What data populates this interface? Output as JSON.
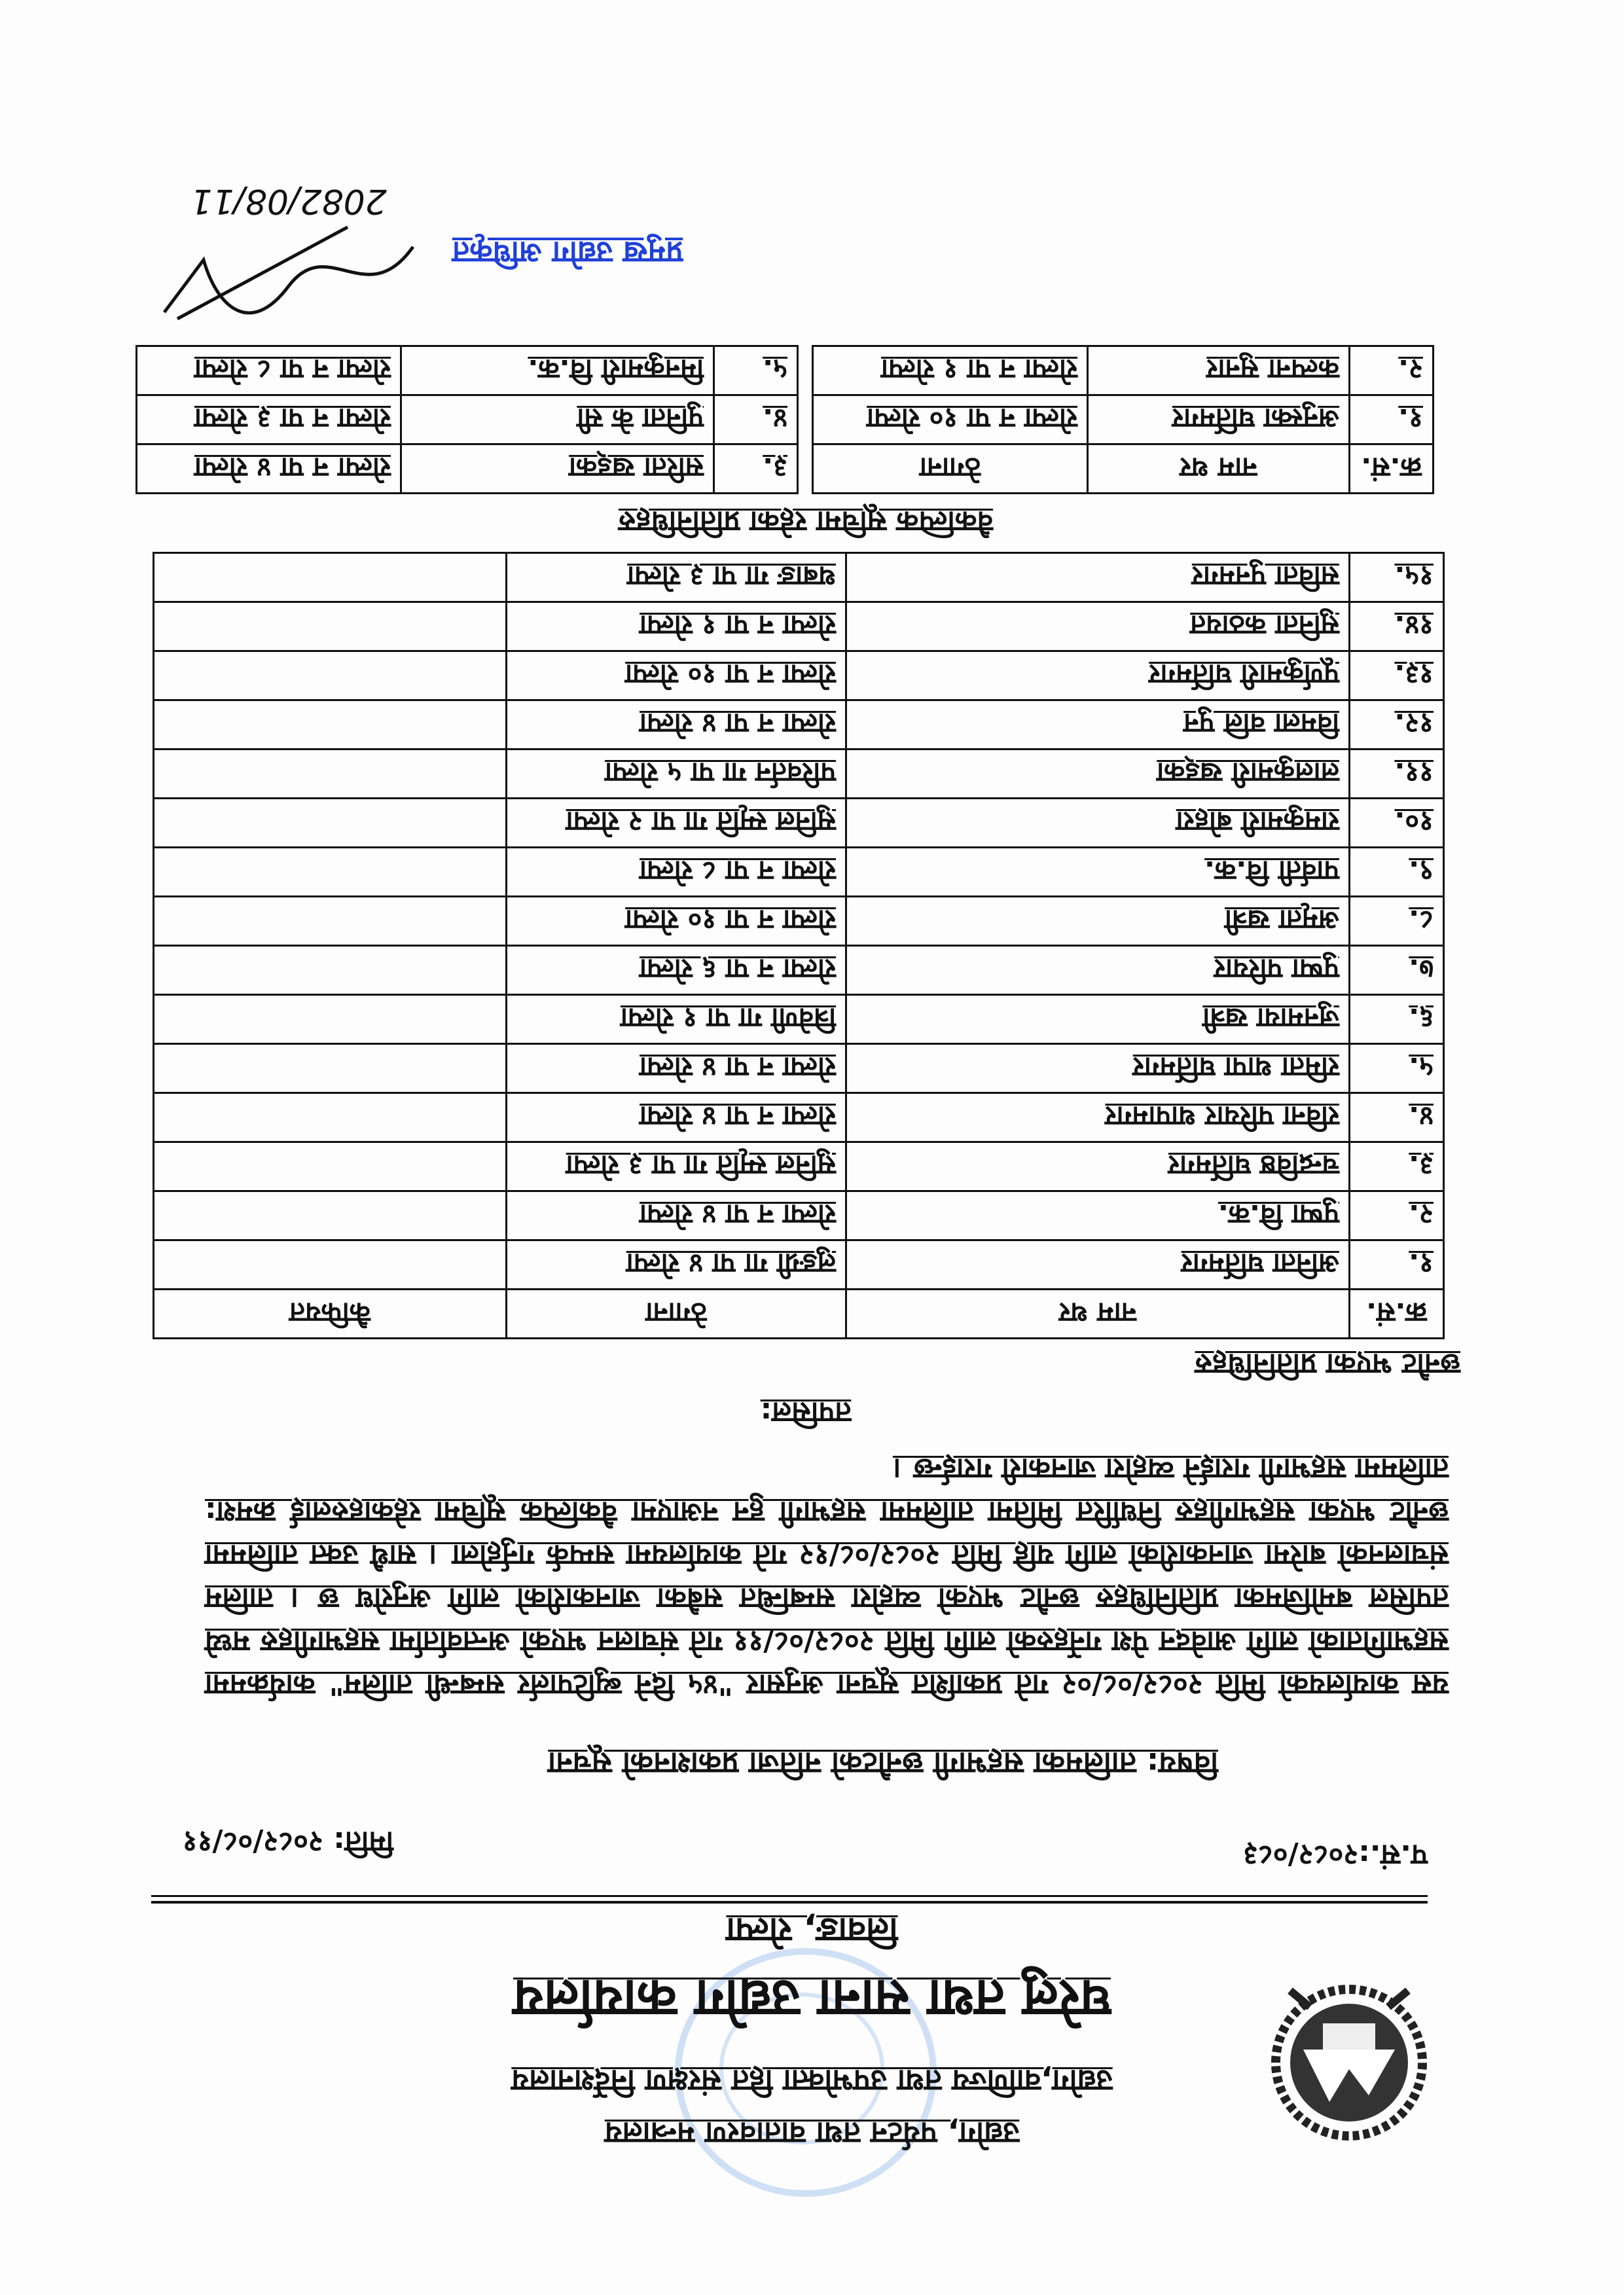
{
  "header": {
    "ministry": "उद्योग, पर्यटन तथा वातावरण मन्त्रालय",
    "directorate": "उद्योग,वाणिज्य तथा उपभोक्ता हित संरक्षण निर्देशनालय",
    "office": "घरेलु तथा साना उद्योग कार्यालय",
    "location": "लिवाङ, रोल्पा"
  },
  "meta": {
    "ref_no": "प.सं.:२०८२/०८३",
    "date": "मिति: २०८२/०८/११"
  },
  "subject": "विषय: तालिमका सहभागी छनौटको नतिजा प्रकाशनको सूचना",
  "body": "यस कार्यालयको मिति २०८२/०८/०२ गते प्रकाशित सूचना अनुसार \"४५ दिने ब्युटिपार्लर सम्बन्धी तालिम\" कार्यक्रममा सहभागिताको लागि आवेदन पेश गर्नेहरुको लागि मिति २०८२/०८/११ गते संचालन भएको अन्तर्वार्तामा सहभागीहरु मध्ये तपसिल बमोजिमका प्रतिनिधिहरु छनौट भएको व्यहोरा सम्बन्धित सबैका जानकारीको लागि अनुरोध छ । तालिम संचालनको बारेमा जानकारीको लागि यहि मिति २०८२/०८/१२ गते कार्यालयमा सम्पर्क गर्नुहोला । साथै उक्त तालिममा छनौट भएका सहभागीहरु निर्धारित मितिमा तालिममा सहभागी हुन नआएमा वैकल्पिक सूचिमा रहेकाहरुलाई क्रमश: तालिममा सहभागी गराईने व्यहोरा जानकारी गराईन्छ ।",
  "tapsil": "तपसिल:",
  "selected": {
    "heading": "छनौट भएका प्रतिनिधिहरु",
    "columns": [
      "क्र.सं.",
      "नाम थर",
      "ठेगाना",
      "कैफियत"
    ],
    "rows": [
      {
        "sn": "१.",
        "name": "अनिता घर्तिमगर",
        "address": "लुङग्री गा पा ४ रोल्पा",
        "remark": ""
      },
      {
        "sn": "२.",
        "name": "पुष्पा वि.क.",
        "address": "रोल्पा न पा ४ रोल्पा",
        "remark": ""
      },
      {
        "sn": "३.",
        "name": "चन्द्रविष्ठ घर्तिमगर",
        "address": "सुनिल स्मृति गा पा ३ रोल्पा",
        "remark": ""
      },
      {
        "sn": "४.",
        "name": "रविना परियार थापामगर",
        "address": "रोल्पा न पा ४ रोल्पा",
        "remark": ""
      },
      {
        "sn": "५.",
        "name": "रमिता थापा घर्तिमगर",
        "address": "रोल्पा न पा ४ रोल्पा",
        "remark": ""
      },
      {
        "sn": "६.",
        "name": "जुनमाया खत्री",
        "address": "त्रिवेणी गा पा १ रोल्पा",
        "remark": ""
      },
      {
        "sn": "७.",
        "name": "पुष्पा परियार",
        "address": "रोल्पा न पा ६ रोल्पा",
        "remark": ""
      },
      {
        "sn": "८.",
        "name": "अमृता खत्री",
        "address": "रोल्पा न पा १० रोल्पा",
        "remark": ""
      },
      {
        "sn": "९.",
        "name": "पार्वती वि.क.",
        "address": "रोल्पा न पा ८ रोल्पा",
        "remark": ""
      },
      {
        "sn": "१०.",
        "name": "रामकुमारी बोहरा",
        "address": "सुनिल स्मृति गा पा २ रोल्पा",
        "remark": ""
      },
      {
        "sn": "११.",
        "name": "लालकुमारी खड्का",
        "address": "परिवर्तन गा पा ५ रोल्पा",
        "remark": ""
      },
      {
        "sn": "१२.",
        "name": "विमला वलि पुन",
        "address": "रोल्पा न पा ४ रोल्पा",
        "remark": ""
      },
      {
        "sn": "१३.",
        "name": "पूर्णकुमारी घर्तिमगर",
        "address": "रोल्पा न पा १० रोल्पा",
        "remark": ""
      },
      {
        "sn": "१४.",
        "name": "सुनिता कठायत",
        "address": "रोल्पा न पा १ रोल्पा",
        "remark": ""
      },
      {
        "sn": "१५.",
        "name": "सविता पुनमगर",
        "address": "थबाङ गा पा ३ रोल्पा",
        "remark": ""
      }
    ]
  },
  "alternate": {
    "heading": "वैकल्पिक सूचिमा रहेका प्रतिनिधिहरु",
    "columns": [
      "क्र.सं.",
      "नाम थर",
      "ठेगाना"
    ],
    "rows": [
      {
        "sn": "१.",
        "name": "अनुस्का घर्तिमगर",
        "address": "रोल्पा न पा १० रोल्पा"
      },
      {
        "sn": "२.",
        "name": "कल्पना सुनार",
        "address": "रोल्पा न पा १ रोल्पा"
      },
      {
        "sn": "३.",
        "name": "सरिता खड्का",
        "address": "रोल्पा न पा ४ रोल्पा"
      },
      {
        "sn": "४.",
        "name": "पुनिता के सी",
        "address": "रोल्पा न पा ३ रोल्पा"
      },
      {
        "sn": "५.",
        "name": "मिनकुमारी वि.क.",
        "address": "रोल्पा न पा ८ रोल्पा"
      }
    ]
  },
  "signature": {
    "stamp_text": "प्रमुख उद्योग अधिकृत",
    "handwritten_date": "2082/08/11"
  },
  "colors": {
    "ink": "#111111",
    "stamp_blue": "#2040d8",
    "faint_stamp": "#78aae6"
  },
  "orientation": "rotated 180 degrees"
}
